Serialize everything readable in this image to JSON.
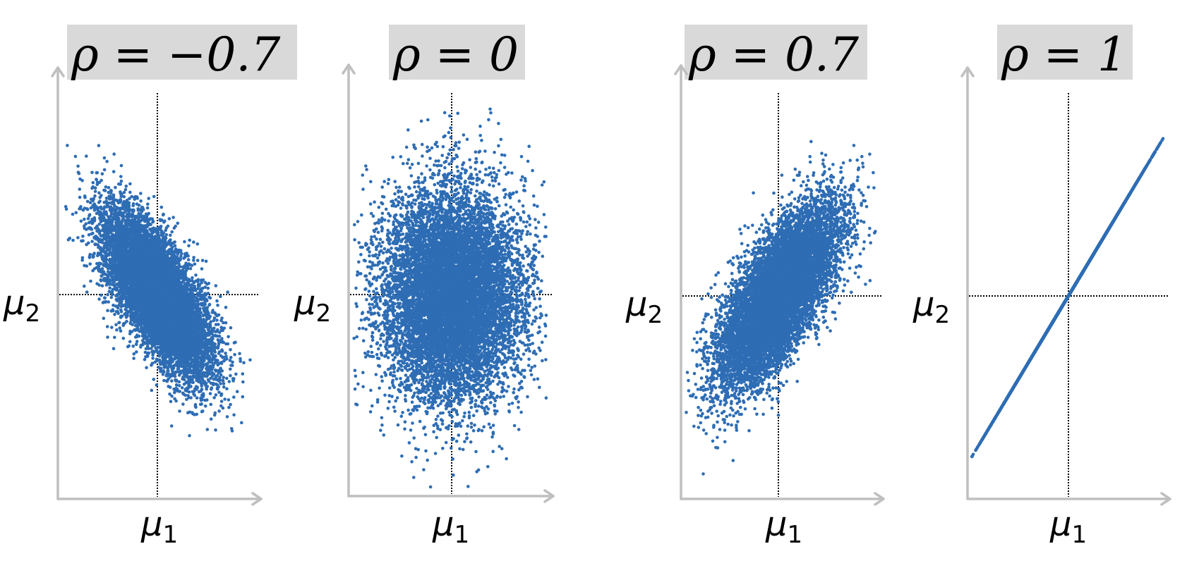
{
  "chart_data": [
    {
      "type": "scatter",
      "title": "ρ = −0.7",
      "rho": -0.7,
      "n_points": 10000,
      "xlabel": "μ",
      "xlabel_sub": "1",
      "ylabel": "μ",
      "ylabel_sub": "2",
      "reference_lines": "dotted lines at (μ1, μ2)",
      "color": "#2e6db4"
    },
    {
      "type": "scatter",
      "title": "ρ = 0",
      "rho": 0,
      "n_points": 10000,
      "xlabel": "μ",
      "xlabel_sub": "1",
      "ylabel": "μ",
      "ylabel_sub": "2",
      "reference_lines": "dotted lines at (μ1, μ2)",
      "color": "#2e6db4"
    },
    {
      "type": "scatter",
      "title": "ρ = 0.7",
      "rho": 0.7,
      "n_points": 10000,
      "xlabel": "μ",
      "xlabel_sub": "1",
      "ylabel": "μ",
      "ylabel_sub": "2",
      "reference_lines": "dotted lines at (μ1, μ2)",
      "color": "#2e6db4"
    },
    {
      "type": "scatter",
      "title": "ρ = 1",
      "rho": 1,
      "n_points": 10000,
      "xlabel": "μ",
      "xlabel_sub": "1",
      "ylabel": "μ",
      "ylabel_sub": "2",
      "reference_lines": "dotted lines at (μ1, μ2)",
      "color": "#2e6db4"
    }
  ]
}
